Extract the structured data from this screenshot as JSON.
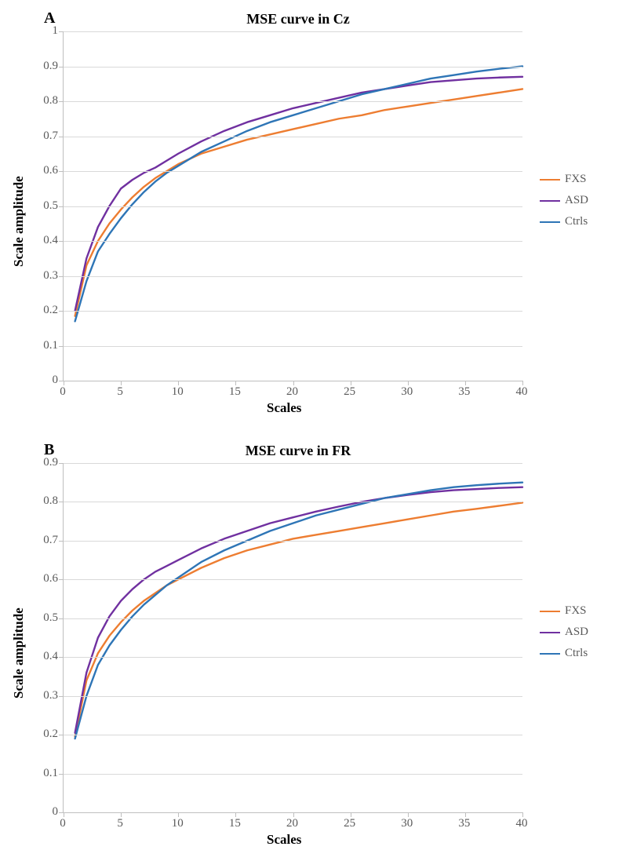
{
  "global": {
    "background_color": "#ffffff",
    "grid_color": "#d9d9d9",
    "axis_color": "#bfbfbf",
    "tick_font_color": "#595959",
    "line_width": 2.4,
    "font_family": "Times New Roman",
    "panel_label_fontsize": 20,
    "title_fontsize": 18,
    "axis_label_fontsize": 17,
    "tick_fontsize": 15
  },
  "legend": {
    "items": [
      {
        "label": "FXS",
        "color": "#ed7d31"
      },
      {
        "label": "ASD",
        "color": "#7030a0"
      },
      {
        "label": "Ctrls",
        "color": "#2e75b6"
      }
    ]
  },
  "panels": [
    {
      "id": "A",
      "title": "MSE curve in Cz",
      "xlabel": "Scales",
      "ylabel": "Scale amplitude",
      "xlim": [
        0,
        40
      ],
      "ylim": [
        0,
        1
      ],
      "xticks": [
        0,
        5,
        10,
        15,
        20,
        25,
        30,
        35,
        40
      ],
      "yticks": [
        0,
        0.1,
        0.2,
        0.3,
        0.4,
        0.5,
        0.6,
        0.7,
        0.8,
        0.9,
        1
      ],
      "series": {
        "FXS": {
          "color": "#ed7d31",
          "x": [
            1,
            2,
            3,
            4,
            5,
            6,
            7,
            8,
            9,
            10,
            12,
            14,
            16,
            18,
            20,
            22,
            24,
            26,
            28,
            30,
            32,
            34,
            36,
            38,
            40
          ],
          "y": [
            0.185,
            0.33,
            0.4,
            0.45,
            0.49,
            0.525,
            0.555,
            0.58,
            0.6,
            0.62,
            0.65,
            0.67,
            0.69,
            0.705,
            0.72,
            0.735,
            0.75,
            0.76,
            0.775,
            0.785,
            0.795,
            0.805,
            0.815,
            0.825,
            0.835
          ]
        },
        "ASD": {
          "color": "#7030a0",
          "x": [
            1,
            2,
            3,
            4,
            5,
            6,
            7,
            8,
            9,
            10,
            12,
            14,
            16,
            18,
            20,
            22,
            24,
            26,
            28,
            30,
            32,
            34,
            36,
            38,
            40
          ],
          "y": [
            0.2,
            0.35,
            0.44,
            0.5,
            0.55,
            0.575,
            0.595,
            0.61,
            0.63,
            0.65,
            0.685,
            0.715,
            0.74,
            0.76,
            0.78,
            0.795,
            0.81,
            0.825,
            0.835,
            0.845,
            0.855,
            0.86,
            0.865,
            0.868,
            0.87
          ]
        },
        "Ctrls": {
          "color": "#2e75b6",
          "x": [
            1,
            2,
            3,
            4,
            5,
            6,
            7,
            8,
            9,
            10,
            12,
            14,
            16,
            18,
            20,
            22,
            24,
            26,
            28,
            30,
            32,
            34,
            36,
            38,
            40
          ],
          "y": [
            0.17,
            0.285,
            0.37,
            0.42,
            0.465,
            0.505,
            0.54,
            0.57,
            0.595,
            0.615,
            0.655,
            0.685,
            0.715,
            0.74,
            0.76,
            0.78,
            0.8,
            0.82,
            0.835,
            0.85,
            0.865,
            0.875,
            0.885,
            0.893,
            0.9
          ]
        }
      }
    },
    {
      "id": "B",
      "title": "MSE curve in FR",
      "xlabel": "Scales",
      "ylabel": "Scale amplitude",
      "xlim": [
        0,
        40
      ],
      "ylim": [
        0,
        0.9
      ],
      "xticks": [
        0,
        5,
        10,
        15,
        20,
        25,
        30,
        35,
        40
      ],
      "yticks": [
        0,
        0.1,
        0.2,
        0.3,
        0.4,
        0.5,
        0.6,
        0.7,
        0.8,
        0.9
      ],
      "series": {
        "FXS": {
          "color": "#ed7d31",
          "x": [
            1,
            2,
            3,
            4,
            5,
            6,
            7,
            8,
            9,
            10,
            12,
            14,
            16,
            18,
            20,
            22,
            24,
            26,
            28,
            30,
            32,
            34,
            36,
            38,
            40
          ],
          "y": [
            0.195,
            0.34,
            0.41,
            0.455,
            0.49,
            0.52,
            0.545,
            0.565,
            0.585,
            0.6,
            0.63,
            0.655,
            0.675,
            0.69,
            0.705,
            0.715,
            0.725,
            0.735,
            0.745,
            0.755,
            0.765,
            0.775,
            0.782,
            0.79,
            0.798
          ]
        },
        "ASD": {
          "color": "#7030a0",
          "x": [
            1,
            2,
            3,
            4,
            5,
            6,
            7,
            8,
            9,
            10,
            12,
            14,
            16,
            18,
            20,
            22,
            24,
            26,
            28,
            30,
            32,
            34,
            36,
            38,
            40
          ],
          "y": [
            0.205,
            0.36,
            0.45,
            0.505,
            0.545,
            0.575,
            0.6,
            0.62,
            0.635,
            0.65,
            0.68,
            0.705,
            0.725,
            0.745,
            0.76,
            0.775,
            0.788,
            0.8,
            0.81,
            0.818,
            0.825,
            0.83,
            0.833,
            0.836,
            0.838
          ]
        },
        "Ctrls": {
          "color": "#2e75b6",
          "x": [
            1,
            2,
            3,
            4,
            5,
            6,
            7,
            8,
            9,
            10,
            12,
            14,
            16,
            18,
            20,
            22,
            24,
            26,
            28,
            30,
            32,
            34,
            36,
            38,
            40
          ],
          "y": [
            0.19,
            0.3,
            0.38,
            0.43,
            0.47,
            0.505,
            0.535,
            0.56,
            0.585,
            0.605,
            0.645,
            0.675,
            0.7,
            0.725,
            0.745,
            0.765,
            0.78,
            0.795,
            0.81,
            0.82,
            0.83,
            0.838,
            0.843,
            0.847,
            0.85
          ]
        }
      }
    }
  ]
}
